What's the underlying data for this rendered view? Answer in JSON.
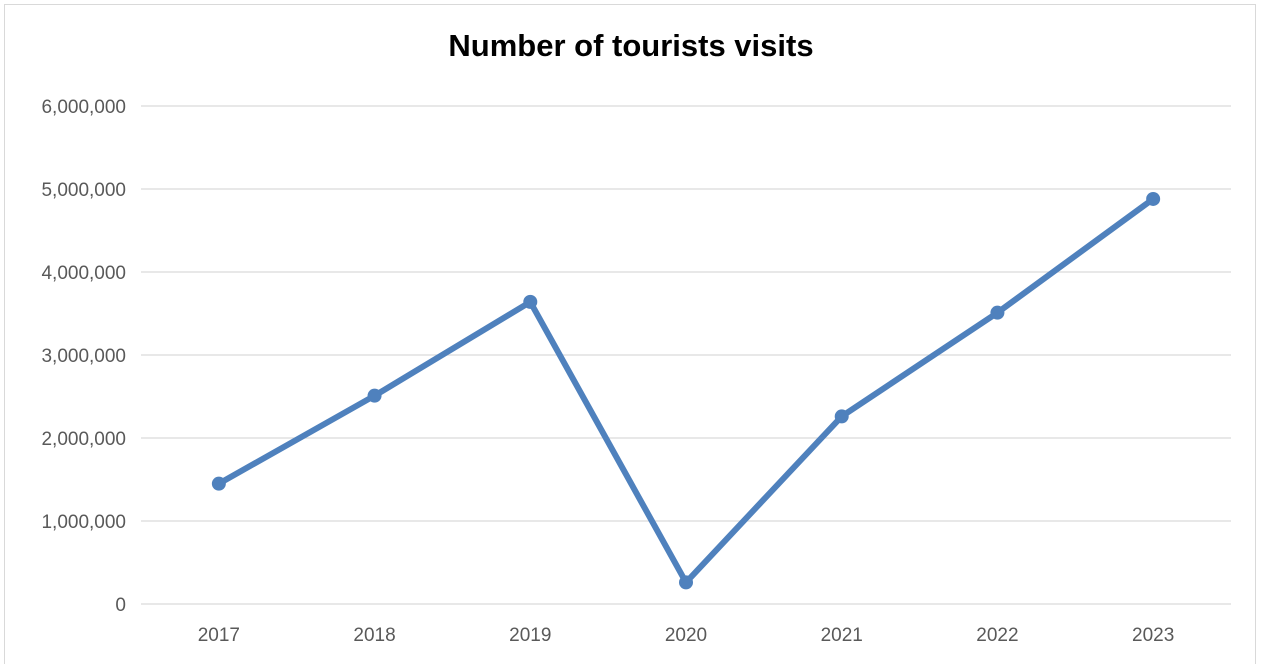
{
  "chart_data": {
    "type": "line",
    "title": "Number of tourists visits",
    "xlabel": "",
    "ylabel": "",
    "categories": [
      "2017",
      "2018",
      "2019",
      "2020",
      "2021",
      "2022",
      "2023"
    ],
    "series": [
      {
        "values": [
          1450000,
          2510000,
          3640000,
          260000,
          2260000,
          3510000,
          4880000
        ]
      }
    ],
    "ylim": [
      0,
      6000000
    ],
    "yticks": [
      "0",
      "1,000,000",
      "2,000,000",
      "3,000,000",
      "4,000,000",
      "5,000,000",
      "6,000,000"
    ],
    "grid": "horizontal",
    "legend": "none",
    "colors": {
      "line": "#4f81bd",
      "grid": "#d9d9d9",
      "tick_text": "#595959"
    }
  }
}
